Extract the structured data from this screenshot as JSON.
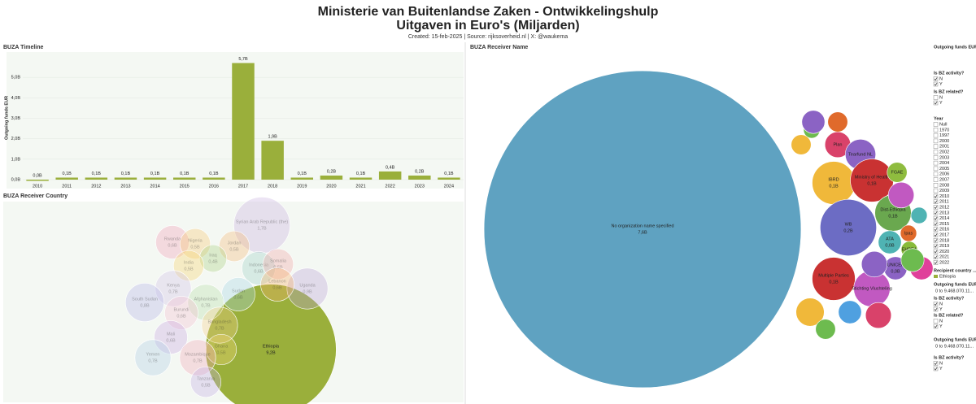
{
  "header": {
    "title": "Ministerie van Buitenlandse Zaken  - Ontwikkelingshulp",
    "subtitle": "Uitgaven in Euro's (Miljarden)",
    "credits": "Created: 15-feb-2025 | Source: rijksoverheid.nl | X: @waukema"
  },
  "chart_data": [
    {
      "type": "bar",
      "title": "BUZA Timeline",
      "y_label": "Outgoing funds EUR",
      "categories": [
        "2010",
        "2011",
        "2012",
        "2013",
        "2014",
        "2015",
        "2016",
        "2017",
        "2018",
        "2019",
        "2020",
        "2021",
        "2022",
        "2023",
        "2024"
      ],
      "values": [
        0.0,
        0.1,
        0.1,
        0.1,
        0.1,
        0.1,
        0.1,
        5.7,
        1.9,
        0.1,
        0.2,
        0.1,
        0.4,
        0.2,
        0.1
      ],
      "value_labels": [
        "0,0B",
        "0,1B",
        "0,1B",
        "0,1B",
        "0,1B",
        "0,1B",
        "0,1B",
        "5,7B",
        "1,9B",
        "0,1B",
        "0,2B",
        "0,1B",
        "0,4B",
        "0,2B",
        "0,1B"
      ],
      "color": "#9aaf3b",
      "ylim": [
        0,
        6
      ],
      "yticks": [
        {
          "value": 0,
          "label": "0,0B"
        },
        {
          "value": 1,
          "label": "1,0B"
        },
        {
          "value": 2,
          "label": "2,0B"
        },
        {
          "value": 3,
          "label": "3,0B"
        },
        {
          "value": 4,
          "label": "4,0B"
        },
        {
          "value": 5,
          "label": "5,0B"
        }
      ]
    },
    {
      "type": "bubble",
      "title": "BUZA Receiver Country",
      "categories": [
        "Ethiopia",
        "Syrian Arab Republic (the)",
        "Rwanda",
        "Nigeria",
        "Jordan",
        "Iraq",
        "India",
        "Indonesia",
        "Somalia",
        "Uganda",
        "Lebanon",
        "Kenya",
        "Sudan",
        "Afghanistan",
        "South Sudan",
        "Burundi",
        "Bangladesh",
        "Mali",
        "Ghana",
        "Yemen",
        "Mozambique",
        "Tanzania"
      ],
      "values": [
        9.2,
        1.7,
        0.6,
        0.5,
        0.5,
        0.4,
        0.5,
        0.6,
        0.5,
        0.9,
        0.6,
        0.7,
        0.6,
        0.7,
        0.8,
        0.6,
        0.7,
        0.6,
        0.5,
        0.7,
        0.7,
        0.5
      ],
      "value_labels": [
        "9,2B",
        "1,7B",
        "0,6B",
        "0,5B",
        "0,5B",
        "0,4B",
        "0,5B",
        "0,6B",
        "0,5B",
        "0,9B",
        "0,6B",
        "0,7B",
        "0,6B",
        "0,7B",
        "0,8B",
        "0,6B",
        "0,7B",
        "0,6B",
        "0,5B",
        "0,7B",
        "0,7B",
        "0,5B"
      ],
      "colors": [
        "#9aaf3b",
        "#c9b3e0",
        "#f2a0b8",
        "#f6c873",
        "#f4b979",
        "#a8d080",
        "#f7d36c",
        "#9fd1c6",
        "#f2a6a6",
        "#b9a3d6",
        "#f5b36b",
        "#d2c3e8",
        "#a6d6e6",
        "#b7e0a8",
        "#b5b5e8",
        "#f3c0d0",
        "#f6d28c",
        "#c8a9e2",
        "#f7da7a",
        "#b0cfe6",
        "#f0a8b8",
        "#c2b0e4"
      ],
      "selected": [
        true,
        false,
        false,
        false,
        false,
        false,
        false,
        false,
        false,
        false,
        false,
        false,
        false,
        false,
        false,
        false,
        false,
        false,
        false,
        false,
        false,
        false
      ]
    },
    {
      "type": "bubble",
      "title": "BUZA Receiver Name",
      "categories": [
        "No organization name specified",
        "EC",
        "Plan",
        "Tearfund NL",
        "IBRD",
        "Ministry of Health",
        "FGAE",
        "WB",
        "Dist-Ethiopia",
        "Ipas",
        "ATA",
        "EHPEA",
        "UNICEF",
        "Multiple Parties",
        "Stichting Vluchteling",
        null,
        null,
        null,
        null,
        null,
        null,
        null,
        null,
        null,
        null,
        null,
        null
      ],
      "values": [
        7.6,
        0.02,
        0.05,
        0.07,
        0.14,
        0.14,
        0.03,
        0.24,
        0.1,
        0.02,
        0.04,
        0.02,
        0.04,
        0.14,
        0.1,
        0.05,
        0.04,
        0.06,
        0.04,
        0.03,
        0.05,
        0.04,
        0.03,
        0.05,
        0.04,
        0.03,
        0.02
      ],
      "value_labels": [
        "7,6B",
        null,
        null,
        null,
        "0,1B",
        "0,1B",
        null,
        "0,2B",
        "0,1B",
        null,
        "0,0B",
        null,
        "0,0B",
        "0,1B",
        null,
        null,
        null,
        null,
        null,
        null,
        null,
        null,
        null,
        null,
        null,
        null,
        null
      ],
      "colors": [
        "#5fa2c1",
        "#6dbb4f",
        "#d9426a",
        "#8b63c4",
        "#f0b83a",
        "#c93232",
        "#8fbc3f",
        "#6c6cc4",
        "#6aa84f",
        "#e06a2b",
        "#4fb3b3",
        "#88bb3a",
        "#8b63c4",
        "#c93232",
        "#c159c1",
        "#8b63c4",
        "#e0409a",
        "#f0b83a",
        "#4fa0e0",
        "#6dbb4f",
        "#d9426a",
        "#8b63c4",
        "#e06a2b",
        "#c159c1",
        "#6dbb4f",
        "#f0b83a",
        "#4fb3b3"
      ],
      "selected": [
        true,
        true,
        true,
        true,
        true,
        true,
        true,
        true,
        true,
        true,
        true,
        true,
        true,
        true,
        true,
        true,
        true,
        true,
        true,
        true,
        true,
        true,
        true,
        true,
        true,
        true,
        true
      ]
    }
  ],
  "filters": [
    {
      "title": "Outgoing funds EUR"
    },
    {
      "title": "Is BZ activity?",
      "options": [
        "N",
        "Y"
      ],
      "checked": [
        true,
        true
      ]
    },
    {
      "title": "Is BZ related?",
      "options": [
        "N",
        "Y"
      ],
      "checked": [
        false,
        true
      ]
    },
    {
      "title": "Year",
      "options": [
        "Null",
        "1970",
        "1997",
        "2000",
        "2001",
        "2002",
        "2003",
        "2004",
        "2005",
        "2006",
        "2007",
        "2008",
        "2009",
        "2010",
        "2011",
        "2012",
        "2013",
        "2014",
        "2015",
        "2016",
        "2017",
        "2018",
        "2019",
        "2020",
        "2021",
        "2022"
      ],
      "checked": [
        false,
        false,
        false,
        false,
        false,
        false,
        false,
        false,
        false,
        false,
        false,
        false,
        false,
        true,
        true,
        true,
        true,
        true,
        true,
        true,
        true,
        true,
        true,
        true,
        true,
        true
      ]
    },
    {
      "title": "Recipient country ...",
      "legend": "Ethiopia",
      "color": "#9aaf3b"
    },
    {
      "title": "Outgoing funds EUR",
      "range": "0 to 9.468.070.11..."
    },
    {
      "title": "Is BZ activity?",
      "options": [
        "N",
        "Y"
      ],
      "checked": [
        true,
        true
      ]
    },
    {
      "title": "Is BZ related?",
      "options": [
        "N",
        "Y"
      ],
      "checked": [
        false,
        true
      ]
    },
    {
      "title": "Outgoing funds EUR",
      "range": "0 to 9.468.070.11..."
    },
    {
      "title": "Is BZ activity?",
      "options": [
        "N",
        "Y"
      ],
      "checked": [
        true,
        true
      ]
    }
  ]
}
